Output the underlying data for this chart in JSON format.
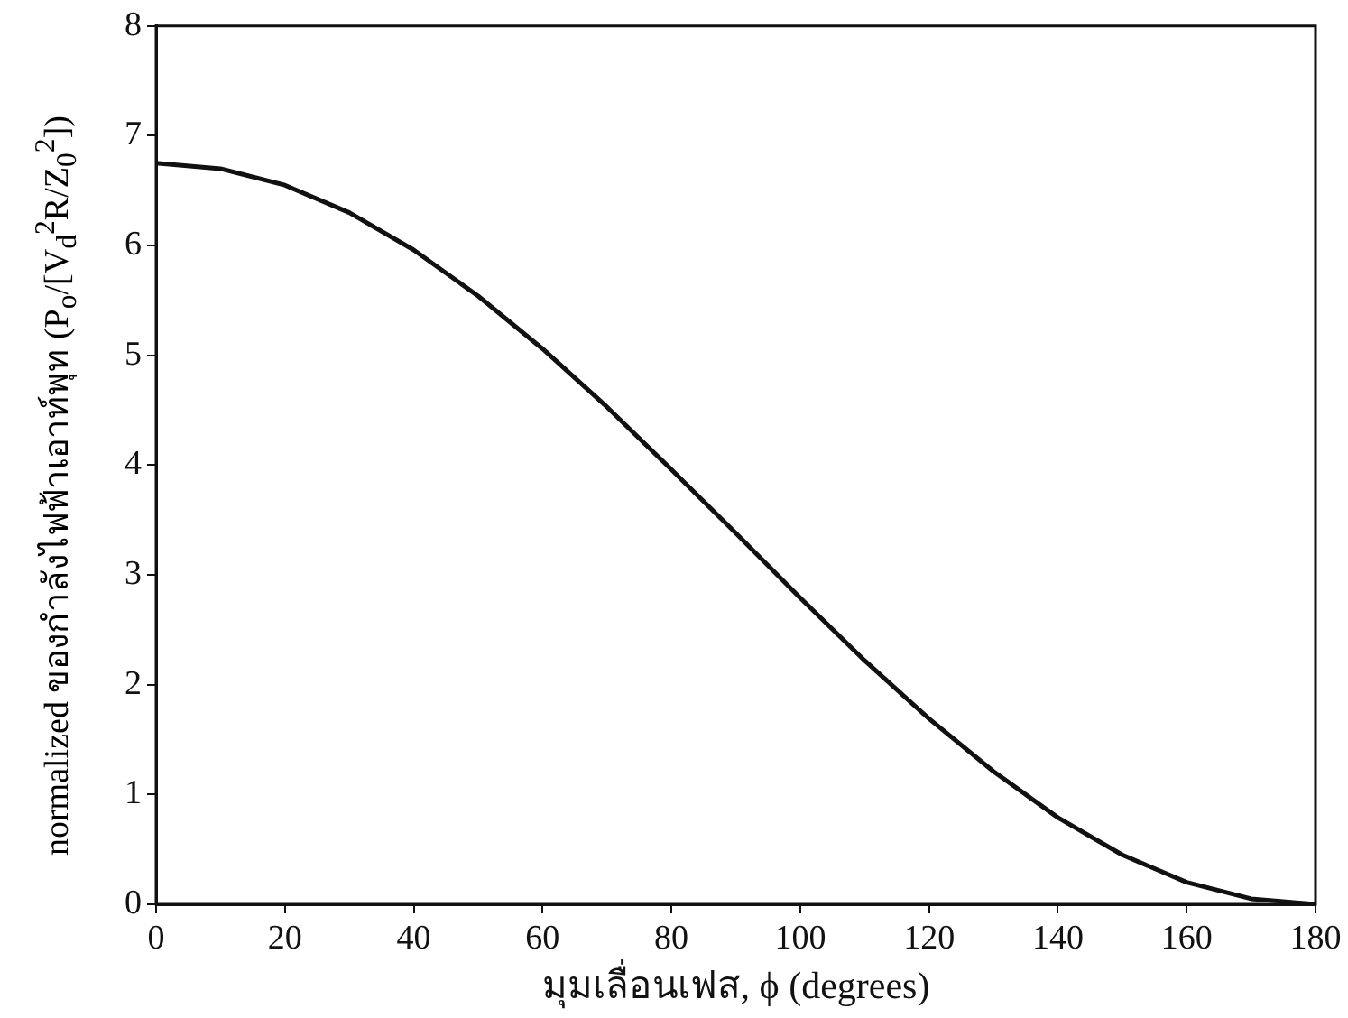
{
  "chart_data": {
    "type": "line",
    "xlabel": "มุมเลื่อนเฟส, ϕ (degrees)",
    "ylabel": "normalized ของกำลังไฟฟ้าเอาท์พุท (P$_{o}$/[V$_{d}$$^{2}$R/Z$_{0}$$^{2}$])",
    "x": [
      0,
      10,
      20,
      30,
      40,
      50,
      60,
      70,
      80,
      90,
      100,
      110,
      120,
      130,
      140,
      150,
      160,
      170,
      180
    ],
    "series": [
      {
        "color": "#111111",
        "values": [
          6.75,
          6.7,
          6.55,
          6.3,
          5.96,
          5.54,
          5.06,
          4.53,
          3.96,
          3.38,
          2.79,
          2.22,
          1.69,
          1.21,
          0.79,
          0.45,
          0.2,
          0.05,
          0
        ]
      }
    ],
    "xlim": [
      0,
      180
    ],
    "xticks": [
      0,
      20,
      40,
      60,
      80,
      100,
      120,
      140,
      160,
      180
    ],
    "ylim": [
      0,
      8
    ],
    "yticks": [
      0,
      1,
      2,
      3,
      4,
      5,
      6,
      7,
      8
    ],
    "grid": false,
    "legend": false,
    "marker": "none",
    "line_style": "solid"
  }
}
